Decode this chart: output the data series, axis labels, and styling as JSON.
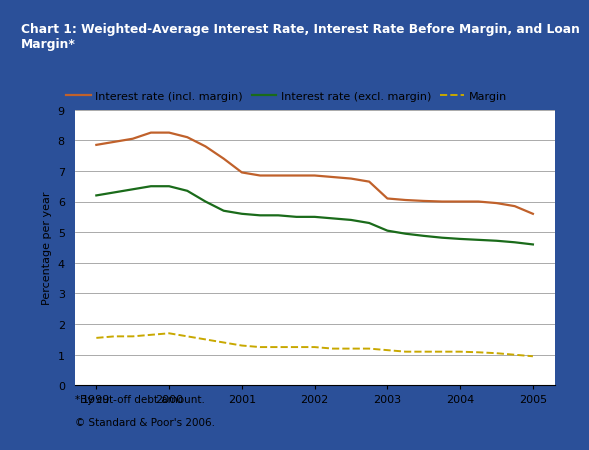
{
  "title": "Chart 1: Weighted-Average Interest Rate, Interest Rate Before Margin, and Loan\nMargin*",
  "title_bg_color": "#3B6BC0",
  "title_text_color": "#FFFFFF",
  "border_color": "#2B5099",
  "ylabel": "Percentage per year",
  "footnote1": "*By cut-off debt amount.",
  "footnote2": "© Standard & Poor's 2006.",
  "ylim": [
    0,
    9
  ],
  "yticks": [
    0,
    1,
    2,
    3,
    4,
    5,
    6,
    7,
    8,
    9
  ],
  "xticks": [
    1999,
    2000,
    2001,
    2002,
    2003,
    2004,
    2005
  ],
  "xlim": [
    1998.7,
    2005.3
  ],
  "series": {
    "incl_margin": {
      "label": "Interest rate (incl. margin)",
      "color": "#C0612B",
      "linestyle": "-",
      "linewidth": 1.6,
      "x": [
        1999.0,
        1999.25,
        1999.5,
        1999.75,
        2000.0,
        2000.25,
        2000.5,
        2000.75,
        2001.0,
        2001.25,
        2001.5,
        2001.75,
        2002.0,
        2002.25,
        2002.5,
        2002.75,
        2003.0,
        2003.25,
        2003.5,
        2003.75,
        2004.0,
        2004.25,
        2004.5,
        2004.75,
        2005.0
      ],
      "y": [
        7.85,
        7.95,
        8.05,
        8.25,
        8.25,
        8.1,
        7.8,
        7.4,
        6.95,
        6.85,
        6.85,
        6.85,
        6.85,
        6.8,
        6.75,
        6.65,
        6.1,
        6.05,
        6.02,
        6.0,
        6.0,
        6.0,
        5.95,
        5.85,
        5.6
      ]
    },
    "excl_margin": {
      "label": "Interest rate (excl. margin)",
      "color": "#1A6B1A",
      "linestyle": "-",
      "linewidth": 1.6,
      "x": [
        1999.0,
        1999.25,
        1999.5,
        1999.75,
        2000.0,
        2000.25,
        2000.5,
        2000.75,
        2001.0,
        2001.25,
        2001.5,
        2001.75,
        2002.0,
        2002.25,
        2002.5,
        2002.75,
        2003.0,
        2003.25,
        2003.5,
        2003.75,
        2004.0,
        2004.25,
        2004.5,
        2004.75,
        2005.0
      ],
      "y": [
        6.2,
        6.3,
        6.4,
        6.5,
        6.5,
        6.35,
        6.0,
        5.7,
        5.6,
        5.55,
        5.55,
        5.5,
        5.5,
        5.45,
        5.4,
        5.3,
        5.05,
        4.95,
        4.88,
        4.82,
        4.78,
        4.75,
        4.72,
        4.67,
        4.6
      ]
    },
    "margin": {
      "label": "Margin",
      "color": "#C8A800",
      "linestyle": "--",
      "linewidth": 1.4,
      "x": [
        1999.0,
        1999.25,
        1999.5,
        1999.75,
        2000.0,
        2000.25,
        2000.5,
        2000.75,
        2001.0,
        2001.25,
        2001.5,
        2001.75,
        2002.0,
        2002.25,
        2002.5,
        2002.75,
        2003.0,
        2003.25,
        2003.5,
        2003.75,
        2004.0,
        2004.25,
        2004.5,
        2004.75,
        2005.0
      ],
      "y": [
        1.55,
        1.6,
        1.6,
        1.65,
        1.7,
        1.6,
        1.5,
        1.4,
        1.3,
        1.25,
        1.25,
        1.25,
        1.25,
        1.2,
        1.2,
        1.2,
        1.15,
        1.1,
        1.1,
        1.1,
        1.1,
        1.08,
        1.05,
        1.0,
        0.95
      ]
    }
  },
  "bg_color": "#FFFFFF",
  "grid_color": "#888888",
  "grid_linewidth": 0.5,
  "tick_fontsize": 8,
  "ylabel_fontsize": 8,
  "legend_fontsize": 8
}
